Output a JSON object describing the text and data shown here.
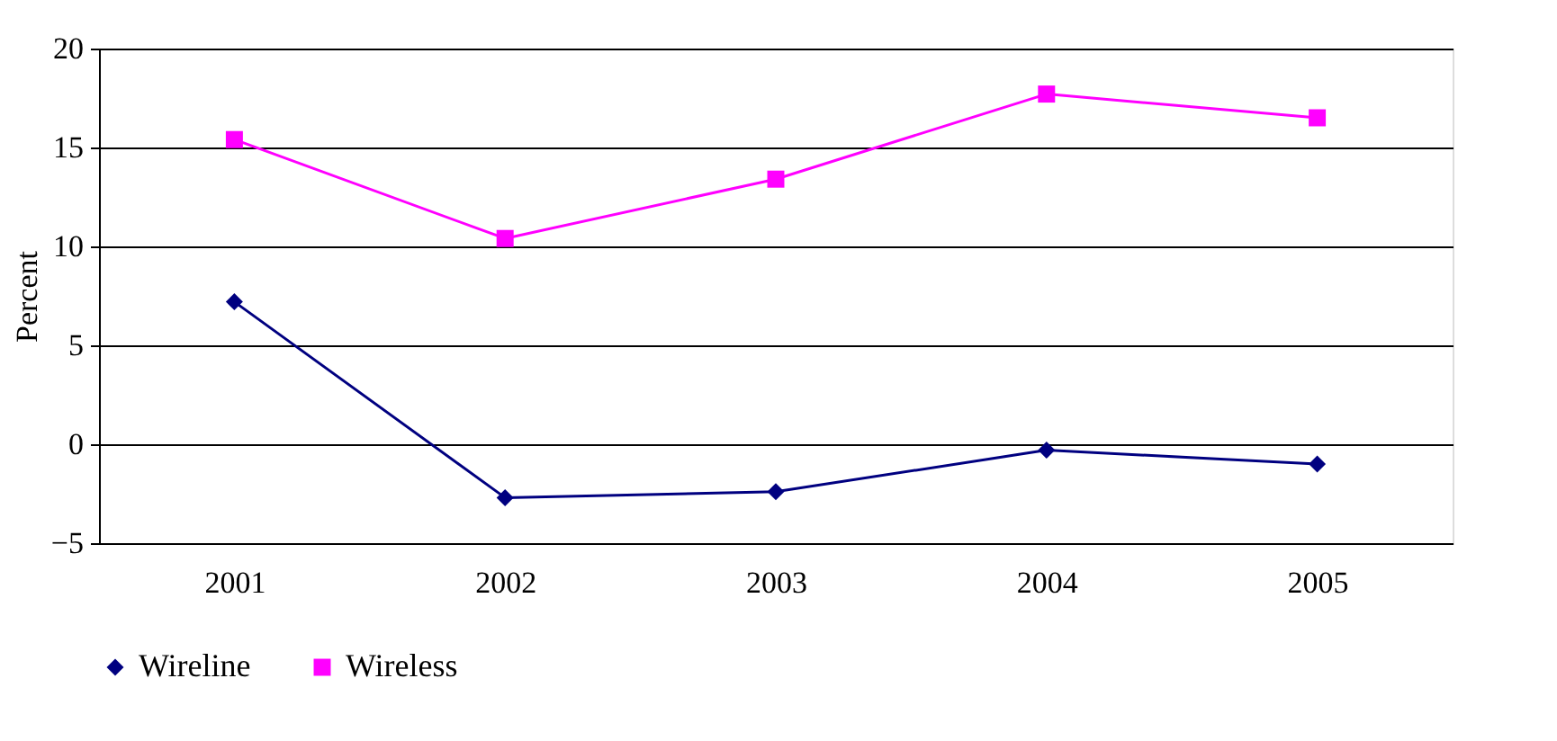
{
  "chart_data": {
    "type": "line",
    "ylabel": "Percent",
    "categories": [
      "2001",
      "2002",
      "2003",
      "2004",
      "2005"
    ],
    "series": [
      {
        "name": "Wireline",
        "color": "#000080",
        "marker": "diamond",
        "values": [
          7.2,
          -2.7,
          -2.4,
          -0.3,
          -1.0
        ]
      },
      {
        "name": "Wireless",
        "color": "#ff00ff",
        "marker": "square",
        "values": [
          15.4,
          10.4,
          13.4,
          17.7,
          16.5
        ]
      }
    ],
    "ylim": [
      -5,
      20
    ],
    "yticks": [
      -5,
      0,
      5,
      10,
      15,
      20
    ],
    "grid": "y",
    "legend": "bottom",
    "line_style": "solid"
  }
}
